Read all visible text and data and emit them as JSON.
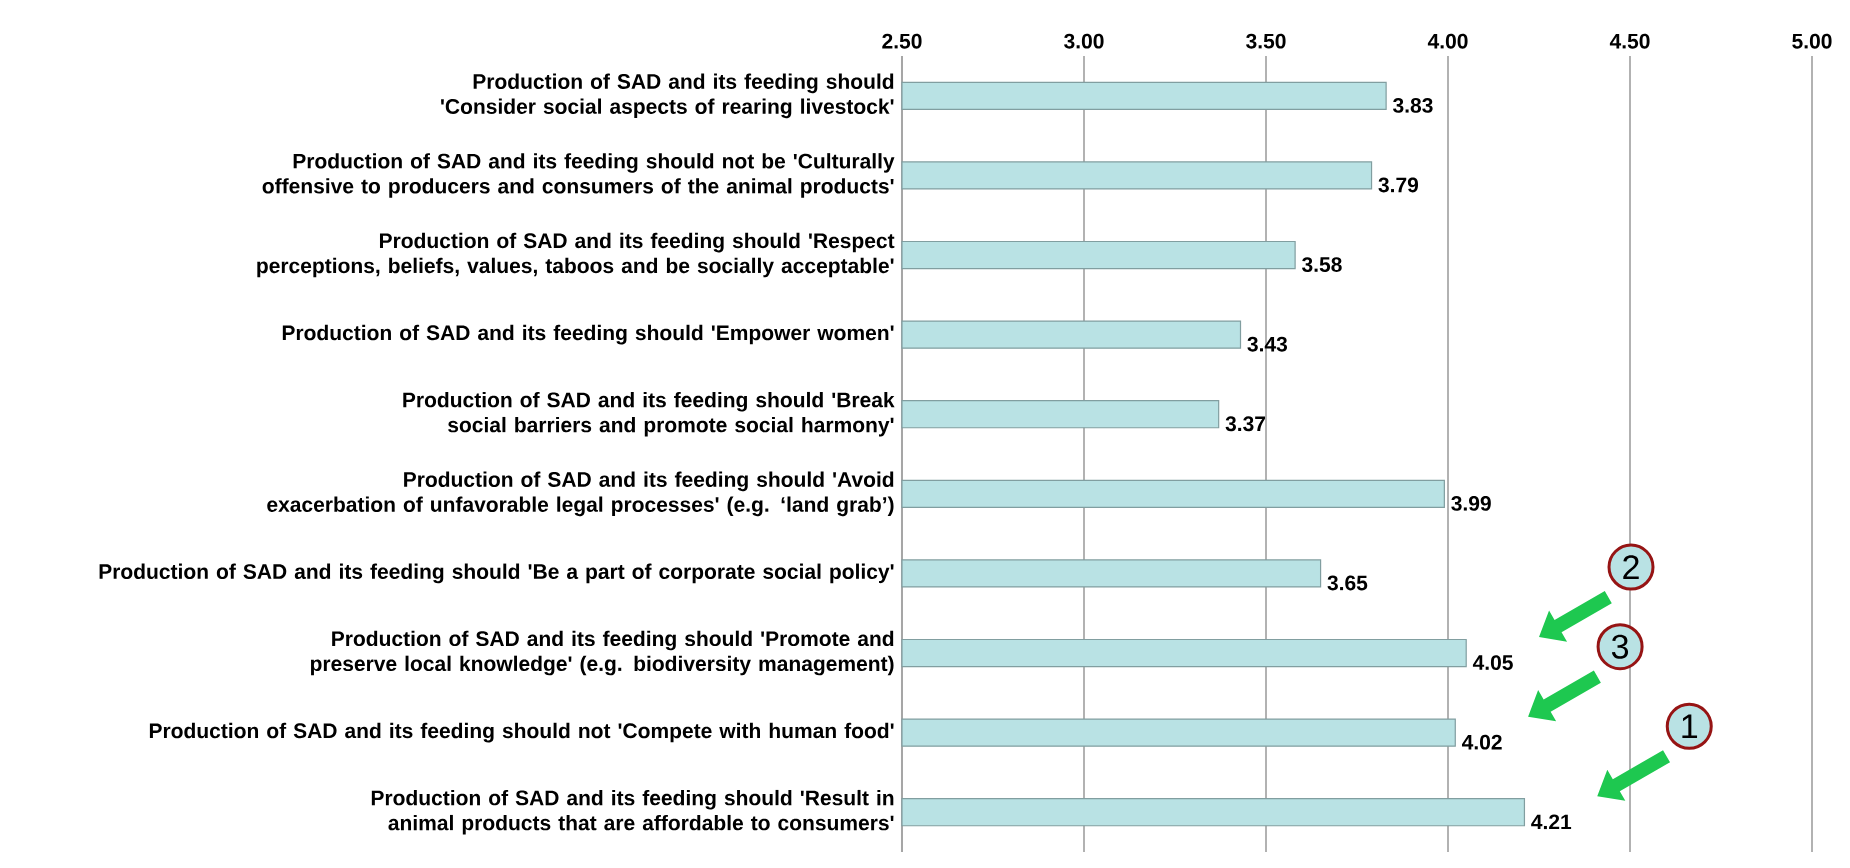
{
  "chart_data": {
    "type": "bar",
    "orientation": "horizontal",
    "categories": [
      "Production of SAD and its feeding should 'Consider social aspects of rearing livestock'",
      "Production of SAD and its feeding should not be 'Culturally offensive to producers and consumers of the animal products'",
      "Production of SAD and its feeding should 'Respect perceptions, beliefs, values, taboos and be socially acceptable'",
      "Production of SAD and its feeding should 'Empower women'",
      "Production of SAD and its feeding should 'Break social barriers and promote social harmony'",
      "Production of SAD and its feeding should 'Avoid exacerbation of unfavorable legal processes' (e.g. ‘land grab’)",
      "Production of SAD and its feeding should 'Be a part of corporate social policy'",
      "Production of SAD and its feeding should 'Promote and preserve local knowledge' (e.g. biodiversity management)",
      "Production of SAD and its feeding should not 'Compete with human food'",
      "Production of SAD and its feeding should 'Result in animal products that are affordable to consumers'"
    ],
    "values": [
      3.83,
      3.79,
      3.58,
      3.43,
      3.37,
      3.99,
      3.65,
      4.05,
      4.02,
      4.21
    ],
    "color": "#b9e2e4",
    "xlim": [
      2.5,
      5.0
    ],
    "xticks": [
      {
        "value": 2.5,
        "label": "2.50"
      },
      {
        "value": 3.0,
        "label": "3.00"
      },
      {
        "value": 3.5,
        "label": "3.50"
      },
      {
        "value": 4.0,
        "label": "4.00"
      },
      {
        "value": 4.5,
        "label": "4.50"
      },
      {
        "value": 5.0,
        "label": "5.00"
      }
    ],
    "grid": "x",
    "data_labels": true,
    "annotations": [
      "2",
      "3",
      "1"
    ]
  }
}
